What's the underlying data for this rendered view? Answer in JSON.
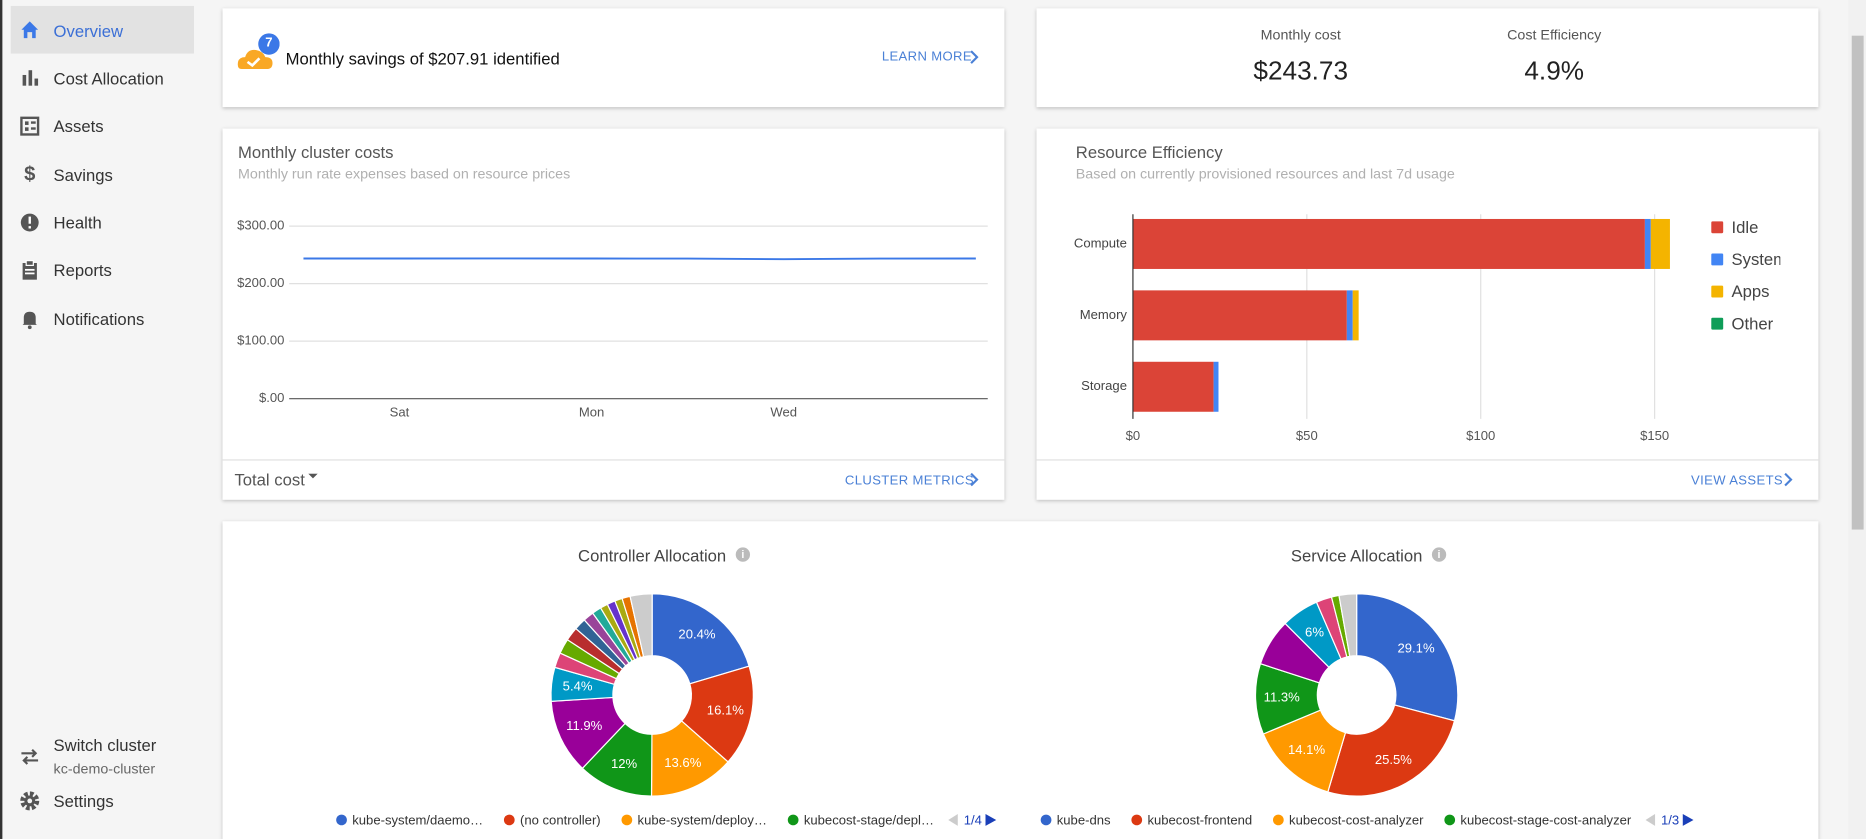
{
  "sidebar": {
    "items": [
      "Overview",
      "Cost Allocation",
      "Assets",
      "Savings",
      "Health",
      "Reports",
      "Notifications"
    ],
    "switch_cluster": "Switch cluster",
    "cluster": "kc-demo-cluster",
    "settings": "Settings"
  },
  "savings": {
    "badge": "7",
    "text": "Monthly savings of $207.91 identified",
    "link": "LEARN MORE"
  },
  "summary": {
    "metrics": [
      {
        "label": "Monthly cost",
        "value": "$243.73"
      },
      {
        "label": "Cost Efficiency",
        "value": "4.9%"
      }
    ]
  },
  "line_footer": {
    "selector": "Total cost",
    "link": "CLUSTER METRICS"
  },
  "bar_footer": {
    "link": "VIEW ASSETS"
  },
  "chart_data": [
    {
      "type": "line",
      "title": "Monthly cluster costs",
      "subtitle": "Monthly run rate expenses based on resource prices",
      "categories": [
        null,
        "Sat",
        null,
        "Mon",
        null,
        "Wed",
        null,
        null
      ],
      "values": [
        243.7,
        243.7,
        243.8,
        243.7,
        243.6,
        242.5,
        243.5,
        243.7
      ],
      "color": "#3b78e7",
      "ylim": [
        0,
        300
      ],
      "yticks": [
        {
          "value": 0,
          "label": "$.00"
        },
        {
          "value": 100,
          "label": "$100.00"
        },
        {
          "value": 200,
          "label": "$200.00"
        },
        {
          "value": 300,
          "label": "$300.00"
        }
      ],
      "grid": true
    },
    {
      "type": "hbar",
      "title": "Resource Efficiency",
      "subtitle": "Based on currently provisioned resources and last 7d usage",
      "categories": [
        "Compute",
        "Memory",
        "Storage"
      ],
      "series": [
        {
          "name": "Idle",
          "color": "#db4437",
          "values": [
            147.2,
            61.5,
            23.2
          ]
        },
        {
          "name": "System",
          "color": "#4285f4",
          "values": [
            1.7,
            1.7,
            1.4
          ]
        },
        {
          "name": "Apps",
          "color": "#f4b400",
          "values": [
            5.5,
            1.7,
            0
          ]
        },
        {
          "name": "Other",
          "color": "#0f9d58",
          "values": [
            0,
            0,
            0
          ]
        }
      ],
      "xlim": [
        0,
        155
      ],
      "xticks": [
        {
          "value": 0,
          "label": "$0"
        },
        {
          "value": 50,
          "label": "$50"
        },
        {
          "value": 100,
          "label": "$100"
        },
        {
          "value": 150,
          "label": "$150"
        }
      ],
      "grid": true,
      "legend": "right"
    },
    {
      "type": "pie",
      "title": "Controller Allocation",
      "categories": [
        "kube-system/daemo…",
        "(no controller)",
        "kube-system/deploy…",
        "kubecost-stage/depl…",
        null,
        null,
        null,
        null,
        null,
        null,
        null,
        null,
        null,
        null,
        null,
        null,
        null
      ],
      "values": [
        20.4,
        16.1,
        13.6,
        12,
        11.9,
        5.4,
        2.4,
        2.4,
        2.2,
        1.9,
        1.7,
        1.5,
        1.2,
        1.3,
        1.2,
        1.3,
        3.5
      ],
      "value_labels": [
        "20.4%",
        "16.1%",
        "13.6%",
        "12%",
        "11.9%",
        "5.4%",
        null,
        null,
        null,
        null,
        null,
        null,
        null,
        null,
        null,
        null,
        null
      ],
      "colors": [
        "#3366cc",
        "#dc3912",
        "#ff9900",
        "#109618",
        "#990099",
        "#0099c6",
        "#dd4477",
        "#66aa00",
        "#b82e2e",
        "#316395",
        "#994499",
        "#22aa99",
        "#aaaa11",
        "#6633cc",
        "#aaaa11",
        "#e67300",
        "#cccccc"
      ],
      "page": "1/4"
    },
    {
      "type": "pie",
      "title": "Service Allocation",
      "categories": [
        "kube-dns",
        "kubecost-frontend",
        "kubecost-cost-analyzer",
        "kubecost-stage-cost-analyzer",
        null,
        null,
        null,
        null,
        null
      ],
      "values": [
        29.1,
        25.5,
        14.1,
        11.3,
        7.5,
        6,
        2.5,
        1.2,
        2.8
      ],
      "value_labels": [
        "29.1%",
        "25.5%",
        "14.1%",
        "11.3%",
        null,
        "6%",
        null,
        null,
        null
      ],
      "colors": [
        "#3366cc",
        "#dc3912",
        "#ff9900",
        "#109618",
        "#990099",
        "#0099c6",
        "#dd4477",
        "#66aa00",
        "#cccccc"
      ],
      "page": "1/3"
    }
  ]
}
